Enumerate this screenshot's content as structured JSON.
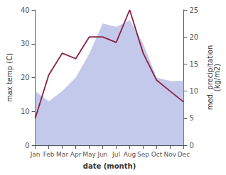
{
  "chart_data": {
    "type": "line",
    "xlabel": "date (month)",
    "ylabel": "max temp (C)",
    "y2label": "med. precipitation\n(kg/m2)",
    "categories": [
      "Jan",
      "Feb",
      "Mar",
      "Apr",
      "May",
      "Jun",
      "Jul",
      "Aug",
      "Sep",
      "Oct",
      "Nov",
      "Dec"
    ],
    "series": [
      {
        "type": "area",
        "color": "#b8c0e8",
        "values": [
          16,
          13,
          16,
          20,
          27,
          36,
          35,
          37,
          30,
          20,
          19,
          19
        ]
      },
      {
        "type": "line",
        "axis": "y2",
        "color": "#8b2040",
        "values": [
          5.0,
          13.0,
          17.0,
          16.0,
          20.0,
          20.0,
          19.0,
          25.0,
          17.0,
          12.0,
          10.0,
          8.0
        ]
      }
    ],
    "ylim": [
      0,
      40
    ],
    "yticks": [
      0,
      10,
      20,
      30,
      40
    ],
    "y2lim": [
      0,
      25
    ],
    "y2ticks": [
      0,
      5,
      10,
      15,
      20,
      25
    ],
    "grid": false
  }
}
